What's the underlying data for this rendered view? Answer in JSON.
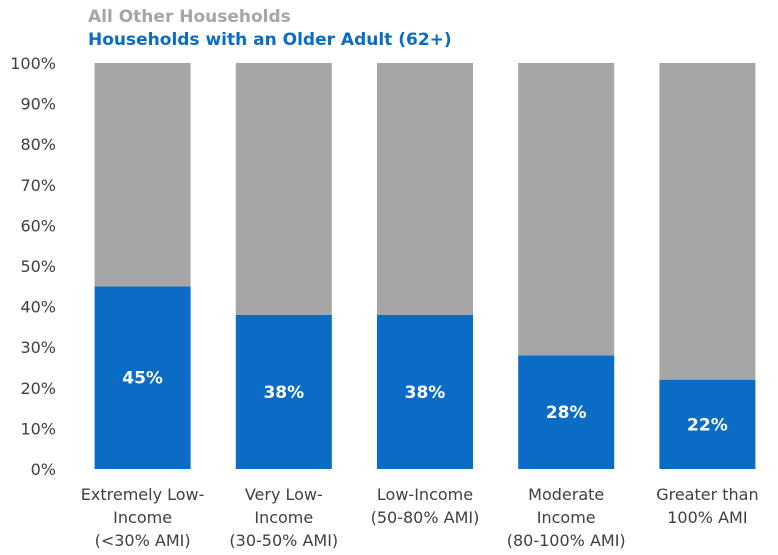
{
  "chart_data": {
    "type": "bar",
    "stacked": true,
    "percent": true,
    "categories": [
      [
        "Extremely Low-",
        "Income",
        "(<30% AMI)"
      ],
      [
        "Very Low-",
        "Income",
        "(30-50% AMI)"
      ],
      [
        "Low-Income",
        "(50-80% AMI)"
      ],
      [
        "Moderate",
        "Income",
        "(80-100% AMI)"
      ],
      [
        "Greater than",
        "100% AMI"
      ]
    ],
    "series": [
      {
        "name": "Households with an Older Adult (62+)",
        "color": "#0b6cc6",
        "values": [
          45,
          38,
          38,
          28,
          22
        ],
        "labels": [
          "45%",
          "38%",
          "38%",
          "28%",
          "22%"
        ]
      },
      {
        "name": "All Other Households",
        "color": "#a6a6a6",
        "values": [
          55,
          62,
          62,
          72,
          78
        ]
      }
    ],
    "ylim": [
      0,
      100
    ],
    "yticks": [
      "0%",
      "10%",
      "20%",
      "30%",
      "40%",
      "50%",
      "60%",
      "70%",
      "80%",
      "90%",
      "100%"
    ],
    "legend": {
      "placement": "top-left",
      "items": [
        {
          "label": "All Other Households",
          "color": "#a6a6a6"
        },
        {
          "label": "Households with an Older Adult (62+)",
          "color": "#0b6cc6"
        }
      ]
    },
    "grid": false
  }
}
